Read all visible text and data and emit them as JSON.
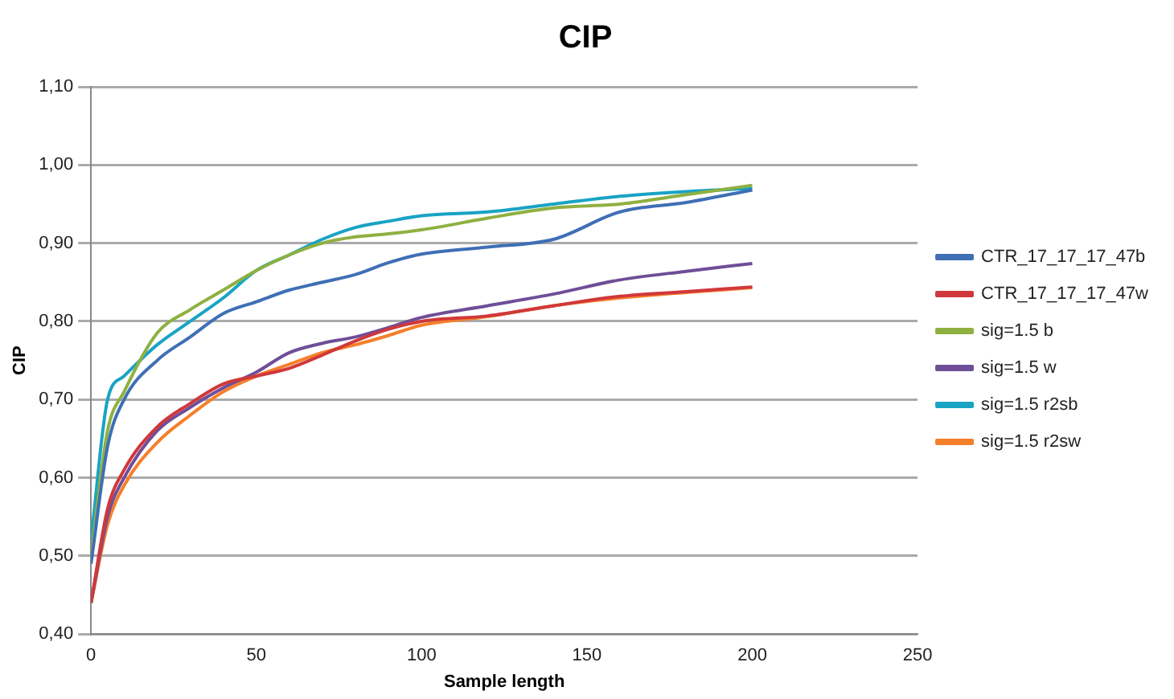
{
  "chart_data": {
    "type": "line",
    "title": "CIP",
    "xlabel": "Sample length",
    "ylabel": "CIP",
    "x": [
      0,
      5,
      10,
      20,
      30,
      40,
      50,
      60,
      70,
      80,
      90,
      100,
      120,
      140,
      160,
      180,
      200
    ],
    "series": [
      {
        "name": "CTR_17_17_17_47b",
        "color": "#3f6fb5",
        "values": [
          0.49,
          0.64,
          0.7,
          0.75,
          0.78,
          0.81,
          0.825,
          0.84,
          0.85,
          0.86,
          0.875,
          0.886,
          0.895,
          0.905,
          0.94,
          0.952,
          0.968
        ]
      },
      {
        "name": "CTR_17_17_17_47w",
        "color": "#d0383b",
        "values": [
          0.44,
          0.56,
          0.61,
          0.665,
          0.695,
          0.72,
          0.73,
          0.74,
          0.757,
          0.775,
          0.79,
          0.8,
          0.807,
          0.82,
          0.832,
          0.838,
          0.844
        ]
      },
      {
        "name": "sig=1.5 b",
        "color": "#8fb040",
        "values": [
          0.5,
          0.66,
          0.71,
          0.785,
          0.815,
          0.84,
          0.865,
          0.885,
          0.9,
          0.908,
          0.912,
          0.917,
          0.932,
          0.945,
          0.95,
          0.962,
          0.974
        ]
      },
      {
        "name": "sig=1.5 w",
        "color": "#6f4e98",
        "values": [
          0.44,
          0.55,
          0.6,
          0.66,
          0.69,
          0.715,
          0.735,
          0.76,
          0.772,
          0.78,
          0.792,
          0.805,
          0.82,
          0.835,
          0.853,
          0.864,
          0.874
        ]
      },
      {
        "name": "sig=1.5 r2sb",
        "color": "#19a3c4",
        "values": [
          0.52,
          0.7,
          0.73,
          0.77,
          0.8,
          0.83,
          0.865,
          0.885,
          0.905,
          0.92,
          0.928,
          0.935,
          0.94,
          0.95,
          0.96,
          0.966,
          0.97
        ]
      },
      {
        "name": "sig=1.5 r2sw",
        "color": "#f57f2a",
        "values": [
          0.44,
          0.54,
          0.59,
          0.645,
          0.68,
          0.71,
          0.73,
          0.745,
          0.76,
          0.77,
          0.782,
          0.795,
          0.806,
          0.82,
          0.83,
          0.837,
          0.843
        ]
      }
    ],
    "xlim": [
      0,
      250
    ],
    "xticks": [
      0,
      50,
      100,
      150,
      200,
      250
    ],
    "ylim": [
      0.4,
      1.1
    ],
    "yticks": [
      {
        "value": 0.4,
        "label": "0,40"
      },
      {
        "value": 0.5,
        "label": "0,50"
      },
      {
        "value": 0.6,
        "label": "0,60"
      },
      {
        "value": 0.7,
        "label": "0,70"
      },
      {
        "value": 0.8,
        "label": "0,80"
      },
      {
        "value": 0.9,
        "label": "0,90"
      },
      {
        "value": 1.0,
        "label": "1,00"
      },
      {
        "value": 1.1,
        "label": "1,10"
      }
    ],
    "grid": "y",
    "legend": "right",
    "marker": "none",
    "line_style": "solid"
  }
}
